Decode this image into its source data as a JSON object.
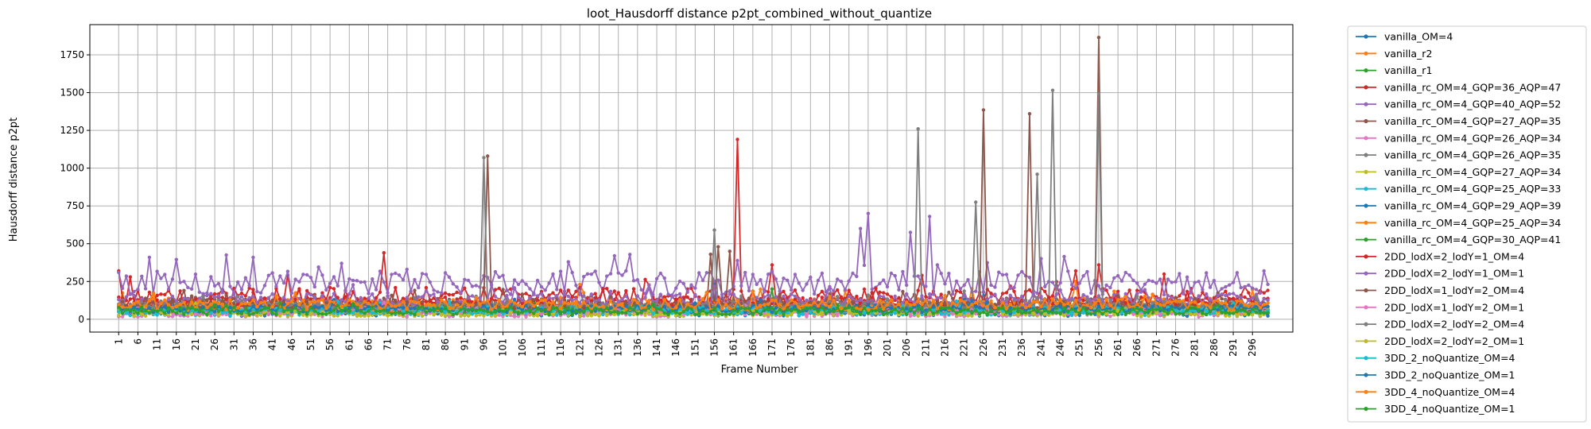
{
  "chart_data": {
    "type": "line",
    "title": "loot_Hausdorff distance p2pt_combined_without_quantize",
    "xlabel": "Frame Number",
    "ylabel": "Hausdorff distance p2pt",
    "xlim": [
      -6.5,
      306.5
    ],
    "ylim": [
      -85,
      1950
    ],
    "x_ticks": [
      1,
      6,
      11,
      16,
      21,
      26,
      31,
      36,
      41,
      46,
      51,
      56,
      61,
      66,
      71,
      76,
      81,
      86,
      91,
      96,
      101,
      106,
      111,
      116,
      121,
      126,
      131,
      136,
      141,
      146,
      151,
      156,
      161,
      166,
      171,
      176,
      181,
      186,
      191,
      196,
      201,
      206,
      211,
      216,
      221,
      226,
      231,
      236,
      241,
      246,
      251,
      256,
      261,
      266,
      271,
      276,
      281,
      286,
      291,
      296
    ],
    "y_ticks": [
      0,
      250,
      500,
      750,
      1000,
      1250,
      1500,
      1750
    ],
    "grid": true,
    "legend_position": "outside-right",
    "x_start": 1,
    "x_end": 300,
    "series": [
      {
        "name": "vanilla_OM=4",
        "color": "#1f77b4",
        "base": 45,
        "amp": 25,
        "spikes": [
          [
            156,
            250
          ],
          [
            226,
            180
          ]
        ]
      },
      {
        "name": "vanilla_r2",
        "color": "#ff7f0e",
        "base": 95,
        "amp": 45,
        "spikes": [
          [
            121,
            230
          ],
          [
            250,
            250
          ]
        ]
      },
      {
        "name": "vanilla_r1",
        "color": "#2ca02c",
        "base": 70,
        "amp": 35,
        "spikes": [
          [
            171,
            200
          ]
        ]
      },
      {
        "name": "vanilla_rc_OM=4_GQP=36_AQP=47",
        "color": "#d62728",
        "base": 150,
        "amp": 60,
        "spikes": [
          [
            1,
            320
          ],
          [
            70,
            440
          ],
          [
            162,
            1190
          ],
          [
            171,
            360
          ],
          [
            250,
            320
          ],
          [
            256,
            360
          ]
        ]
      },
      {
        "name": "vanilla_rc_OM=4_GQP=40_AQP=52",
        "color": "#9467bd",
        "base": 240,
        "amp": 80,
        "spikes": [
          [
            9,
            410
          ],
          [
            16,
            395
          ],
          [
            29,
            425
          ],
          [
            36,
            410
          ],
          [
            59,
            370
          ],
          [
            76,
            330
          ],
          [
            118,
            380
          ],
          [
            130,
            420
          ],
          [
            196,
            700
          ],
          [
            194,
            600
          ],
          [
            207,
            575
          ],
          [
            212,
            680
          ],
          [
            247,
            415
          ],
          [
            299,
            320
          ]
        ]
      },
      {
        "name": "vanilla_rc_OM=4_GQP=27_AQP=35",
        "color": "#8c564b",
        "base": 100,
        "amp": 40,
        "spikes": [
          [
            97,
            1080
          ],
          [
            155,
            430
          ],
          [
            157,
            480
          ],
          [
            160,
            450
          ],
          [
            226,
            1385
          ],
          [
            238,
            1360
          ],
          [
            256,
            1865
          ]
        ]
      },
      {
        "name": "vanilla_rc_OM=4_GQP=26_AQP=34",
        "color": "#e377c2",
        "base": 35,
        "amp": 20,
        "spikes": []
      },
      {
        "name": "vanilla_rc_OM=4_GQP=26_AQP=35",
        "color": "#7f7f7f",
        "base": 90,
        "amp": 40,
        "spikes": [
          [
            96,
            1070
          ],
          [
            156,
            590
          ],
          [
            209,
            1260
          ],
          [
            224,
            775
          ],
          [
            240,
            960
          ],
          [
            244,
            1515
          ],
          [
            256,
            1490
          ]
        ]
      },
      {
        "name": "vanilla_rc_OM=4_GQP=27_AQP=34",
        "color": "#bcbd22",
        "base": 40,
        "amp": 20,
        "spikes": []
      },
      {
        "name": "vanilla_rc_OM=4_GQP=25_AQP=33",
        "color": "#17becf",
        "base": 50,
        "amp": 25,
        "spikes": []
      },
      {
        "name": "vanilla_rc_OM=4_GQP=29_AQP=39",
        "color": "#1f77b4",
        "base": 60,
        "amp": 25,
        "spikes": []
      },
      {
        "name": "vanilla_rc_OM=4_GQP=25_AQP=34",
        "color": "#ff7f0e",
        "base": 75,
        "amp": 30,
        "spikes": []
      },
      {
        "name": "vanilla_rc_OM=4_GQP=30_AQP=41",
        "color": "#2ca02c",
        "base": 65,
        "amp": 30,
        "spikes": []
      },
      {
        "name": "2DD_lodX=2_lodY=1_OM=4",
        "color": "#d62728",
        "base": 110,
        "amp": 40,
        "spikes": []
      },
      {
        "name": "2DD_lodX=2_lodY=1_OM=1",
        "color": "#9467bd",
        "base": 130,
        "amp": 40,
        "spikes": []
      },
      {
        "name": "2DD_lodX=1_lodY=2_OM=4",
        "color": "#8c564b",
        "base": 85,
        "amp": 30,
        "spikes": []
      },
      {
        "name": "2DD_lodX=1_lodY=2_OM=1",
        "color": "#e377c2",
        "base": 55,
        "amp": 25,
        "spikes": []
      },
      {
        "name": "2DD_lodX=2_lodY=2_OM=4",
        "color": "#7f7f7f",
        "base": 80,
        "amp": 30,
        "spikes": []
      },
      {
        "name": "2DD_lodX=2_lodY=2_OM=1",
        "color": "#bcbd22",
        "base": 45,
        "amp": 25,
        "spikes": []
      },
      {
        "name": "3DD_2_noQuantize_OM=4",
        "color": "#17becf",
        "base": 60,
        "amp": 25,
        "spikes": []
      },
      {
        "name": "3DD_2_noQuantize_OM=1",
        "color": "#1f77b4",
        "base": 70,
        "amp": 25,
        "spikes": []
      },
      {
        "name": "3DD_4_noQuantize_OM=4",
        "color": "#ff7f0e",
        "base": 95,
        "amp": 35,
        "spikes": []
      },
      {
        "name": "3DD_4_noQuantize_OM=1",
        "color": "#2ca02c",
        "base": 55,
        "amp": 25,
        "spikes": []
      }
    ]
  }
}
